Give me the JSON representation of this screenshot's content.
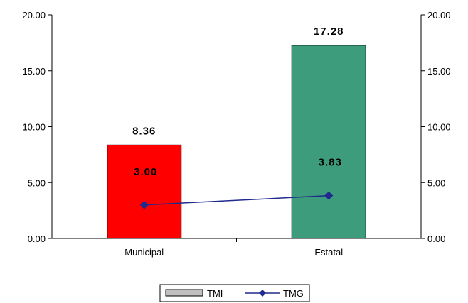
{
  "chart_data": {
    "type": "bar",
    "categories": [
      "Municipal",
      "Estatal"
    ],
    "series": [
      {
        "name": "TMI",
        "type": "bar",
        "values": [
          8.36,
          17.28
        ],
        "colors": [
          "#ff0000",
          "#3c9c7c"
        ],
        "labels": [
          "8.36",
          "17.28"
        ]
      },
      {
        "name": "TMG",
        "type": "line",
        "values": [
          3.0,
          3.83
        ],
        "color": "#1f2a8c",
        "labels": [
          "3.00",
          "3.83"
        ]
      }
    ],
    "ylim": [
      0,
      20
    ],
    "y_ticks": [
      "0.00",
      "5.00",
      "10.00",
      "15.00",
      "20.00"
    ],
    "y2_ticks": [
      "0.00",
      "5.00",
      "10.00",
      "15.00",
      "20.00"
    ],
    "grid": false,
    "legend_position": "bottom"
  },
  "legend": {
    "tmi_label": "TMI",
    "tmg_label": "TMG"
  }
}
